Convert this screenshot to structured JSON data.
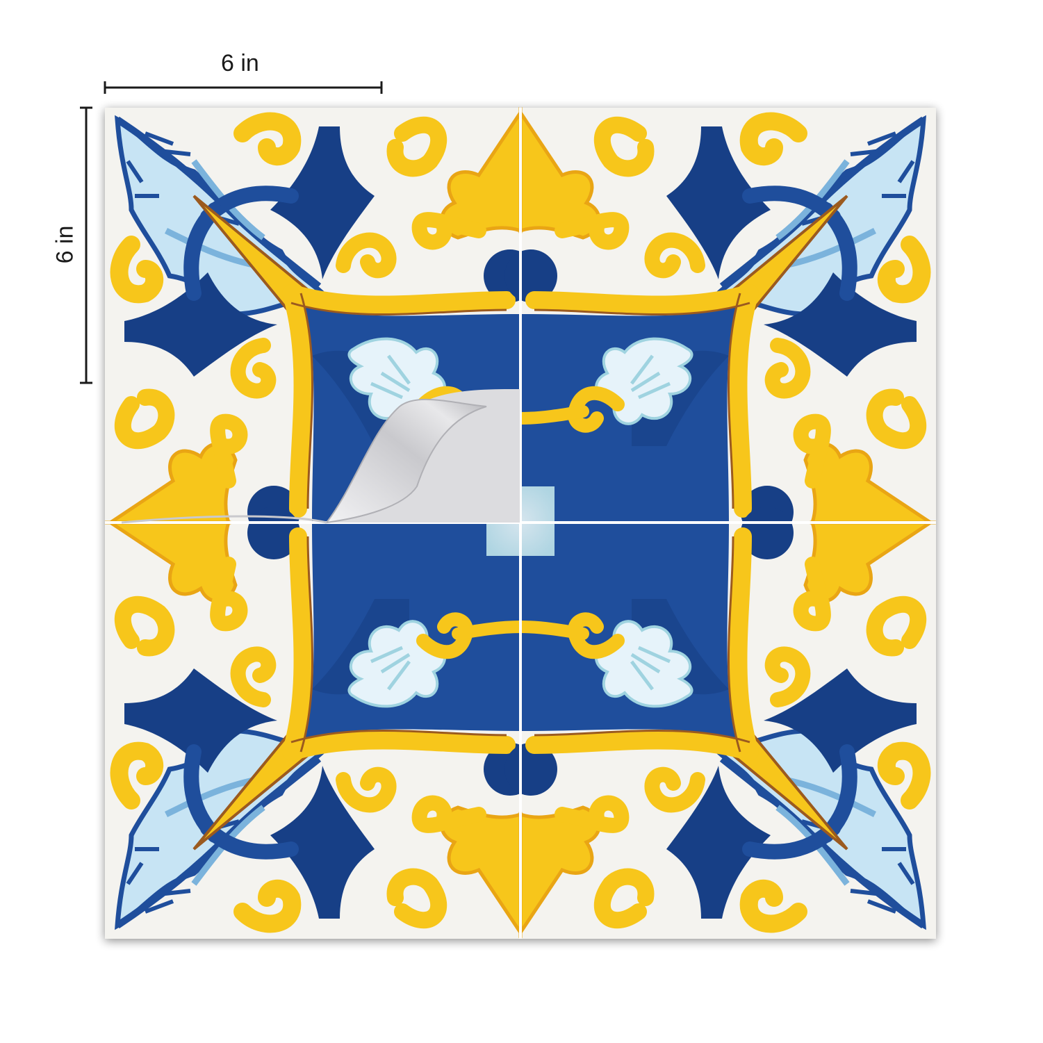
{
  "product": {
    "dimensions": {
      "width_label": "6 in",
      "height_label": "6 in"
    },
    "tile_grid": {
      "rows": 2,
      "cols": 2
    },
    "peel_corner": {
      "tile": "top-left",
      "corner": "bottom-right"
    },
    "colors": {
      "cobalt": "#1f4e9c",
      "navy": "#173f86",
      "sky": "#c7e4f4",
      "pale_blue": "#e6f3fa",
      "yellow": "#f7c61b",
      "gold": "#e9a514",
      "outline": "#9b5a1f",
      "tile_bg": "#f4f3ef",
      "grout": "#ffffff",
      "peel_back": "#d9d9dc"
    },
    "motifs": [
      "blue-acanthus-leaf",
      "yellow-scroll",
      "yellow-palmette",
      "blue-center-frame",
      "white-shell-fan"
    ]
  }
}
